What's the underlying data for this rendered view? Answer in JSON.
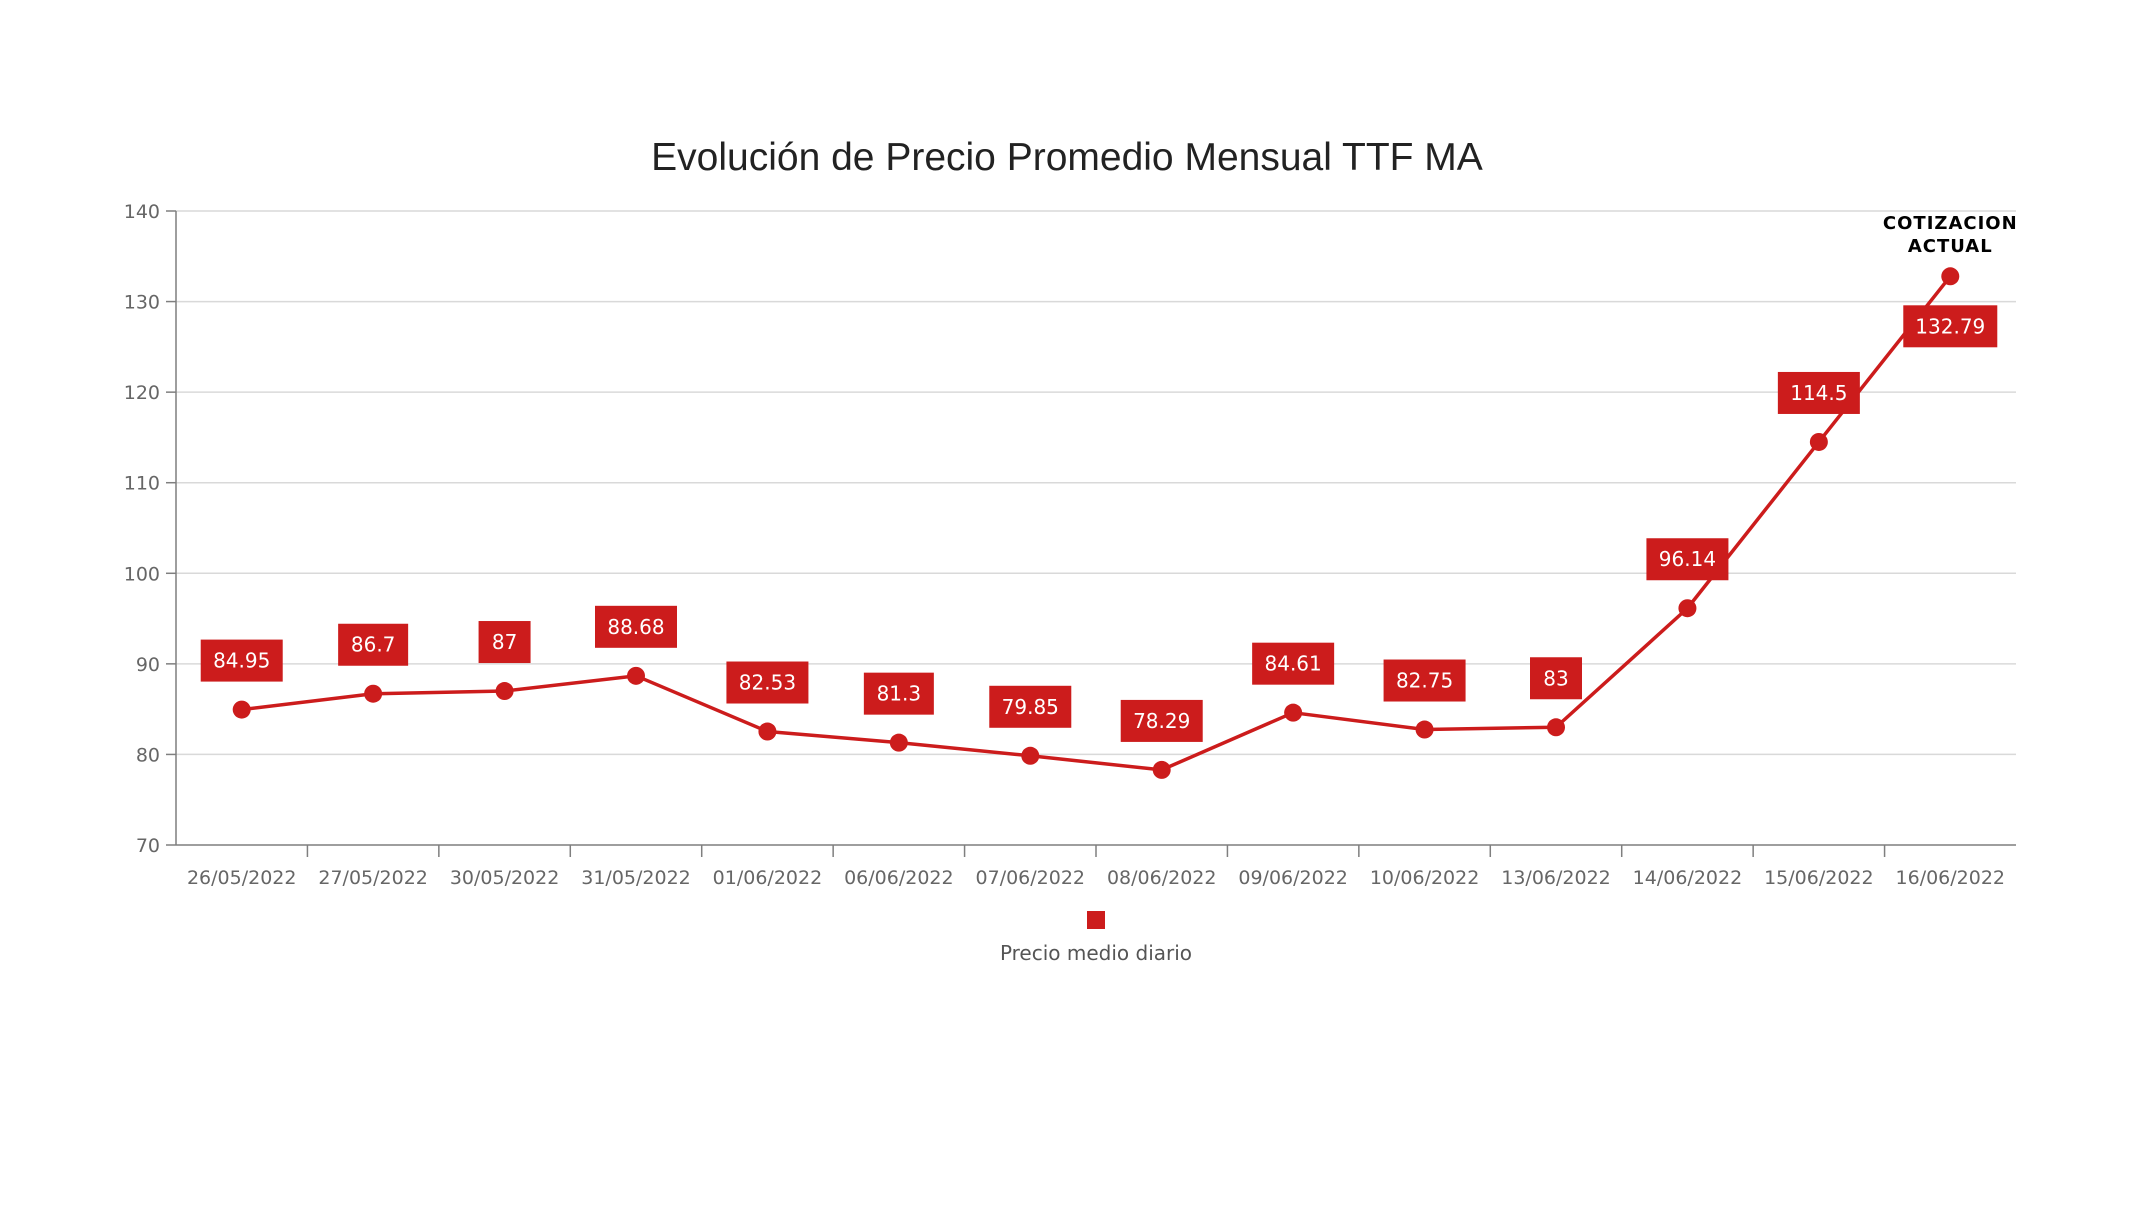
{
  "colors": {
    "series": "#cc1c1c",
    "grid": "#d9d9d9",
    "axis": "#7f7f7f",
    "text": "#666666"
  },
  "chart_data": {
    "type": "line",
    "title": "Evolución de Precio Promedio Mensual TTF MA",
    "xlabel": "",
    "ylabel": "",
    "ylim": [
      70,
      140
    ],
    "yticks": [
      70,
      80,
      90,
      100,
      110,
      120,
      130,
      140
    ],
    "grid": true,
    "legend_position": "bottom-center",
    "categories": [
      "26/05/2022",
      "27/05/2022",
      "30/05/2022",
      "31/05/2022",
      "01/06/2022",
      "06/06/2022",
      "07/06/2022",
      "08/06/2022",
      "09/06/2022",
      "10/06/2022",
      "13/06/2022",
      "14/06/2022",
      "15/06/2022",
      "16/06/2022"
    ],
    "series": [
      {
        "name": "Precio medio diario",
        "values": [
          84.95,
          86.7,
          87,
          88.68,
          82.53,
          81.3,
          79.85,
          78.29,
          84.61,
          82.75,
          83,
          96.14,
          114.5,
          132.79
        ],
        "data_labels": [
          "84.95",
          "86.7",
          "87",
          "88.68",
          "82.53",
          "81.3",
          "79.85",
          "78.29",
          "84.61",
          "82.75",
          "83",
          "96.14",
          "114.5",
          "132.79"
        ]
      }
    ],
    "annotation": {
      "line1": "COTIZACION",
      "line2": "ACTUAL",
      "category": "16/06/2022"
    }
  }
}
